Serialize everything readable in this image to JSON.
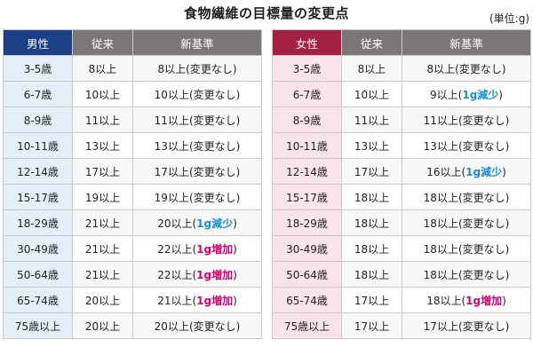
{
  "title": "食物繊維の目標量の変更点",
  "unit": "(単位:g)",
  "colors": {
    "male_header": "#1c3f86",
    "female_header": "#a52143",
    "decrease_tag": "#1a8fd0",
    "increase_tag": "#d6006f"
  },
  "male": {
    "headers": [
      "男性",
      "従来",
      "新基準"
    ],
    "rows": [
      {
        "age": "3-5歳",
        "old": "8以上",
        "new_pre": "8以上(",
        "new_tag": "",
        "new_tag_type": "",
        "new_note": "変更なし",
        "new_post": ")"
      },
      {
        "age": "6-7歳",
        "old": "10以上",
        "new_pre": "10以上(",
        "new_tag": "",
        "new_tag_type": "",
        "new_note": "変更なし",
        "new_post": ")"
      },
      {
        "age": "8-9歳",
        "old": "11以上",
        "new_pre": "11以上(",
        "new_tag": "",
        "new_tag_type": "",
        "new_note": "変更なし",
        "new_post": ")"
      },
      {
        "age": "10-11歳",
        "old": "13以上",
        "new_pre": "13以上(",
        "new_tag": "",
        "new_tag_type": "",
        "new_note": "変更なし",
        "new_post": ")"
      },
      {
        "age": "12-14歳",
        "old": "17以上",
        "new_pre": "17以上(",
        "new_tag": "",
        "new_tag_type": "",
        "new_note": "変更なし",
        "new_post": ")"
      },
      {
        "age": "15-17歳",
        "old": "19以上",
        "new_pre": "19以上(",
        "new_tag": "",
        "new_tag_type": "",
        "new_note": "変更なし",
        "new_post": ")"
      },
      {
        "age": "18-29歳",
        "old": "21以上",
        "new_pre": "20以上(",
        "new_tag": "1g減少",
        "new_tag_type": "dec",
        "new_note": "",
        "new_post": ")"
      },
      {
        "age": "30-49歳",
        "old": "21以上",
        "new_pre": "22以上(",
        "new_tag": "1g増加",
        "new_tag_type": "inc",
        "new_note": "",
        "new_post": ")"
      },
      {
        "age": "50-64歳",
        "old": "21以上",
        "new_pre": "22以上(",
        "new_tag": "1g増加",
        "new_tag_type": "inc",
        "new_note": "",
        "new_post": ")"
      },
      {
        "age": "65-74歳",
        "old": "20以上",
        "new_pre": "21以上(",
        "new_tag": "1g増加",
        "new_tag_type": "inc",
        "new_note": "",
        "new_post": ")"
      },
      {
        "age": "75歳以上",
        "old": "20以上",
        "new_pre": "20以上(",
        "new_tag": "",
        "new_tag_type": "",
        "new_note": "変更なし",
        "new_post": ")"
      }
    ]
  },
  "female": {
    "headers": [
      "女性",
      "従来",
      "新基準"
    ],
    "rows": [
      {
        "age": "3-5歳",
        "old": "8以上",
        "new_pre": "8以上(",
        "new_tag": "",
        "new_tag_type": "",
        "new_note": "変更なし",
        "new_post": ")"
      },
      {
        "age": "6-7歳",
        "old": "10以上",
        "new_pre": "9以上(",
        "new_tag": "1g減少",
        "new_tag_type": "dec",
        "new_note": "",
        "new_post": ")"
      },
      {
        "age": "8-9歳",
        "old": "11以上",
        "new_pre": "11以上(",
        "new_tag": "",
        "new_tag_type": "",
        "new_note": "変更なし",
        "new_post": ")"
      },
      {
        "age": "10-11歳",
        "old": "13以上",
        "new_pre": "13以上(",
        "new_tag": "",
        "new_tag_type": "",
        "new_note": "変更なし",
        "new_post": ")"
      },
      {
        "age": "12-14歳",
        "old": "17以上",
        "new_pre": "16以上(",
        "new_tag": "1g減少",
        "new_tag_type": "dec",
        "new_note": "",
        "new_post": ")"
      },
      {
        "age": "15-17歳",
        "old": "18以上",
        "new_pre": "18以上(",
        "new_tag": "",
        "new_tag_type": "",
        "new_note": "変更なし",
        "new_post": ")"
      },
      {
        "age": "18-29歳",
        "old": "18以上",
        "new_pre": "18以上(",
        "new_tag": "",
        "new_tag_type": "",
        "new_note": "変更なし",
        "new_post": ")"
      },
      {
        "age": "30-49歳",
        "old": "18以上",
        "new_pre": "18以上(",
        "new_tag": "",
        "new_tag_type": "",
        "new_note": "変更なし",
        "new_post": ")"
      },
      {
        "age": "50-64歳",
        "old": "18以上",
        "new_pre": "18以上(",
        "new_tag": "",
        "new_tag_type": "",
        "new_note": "変更なし",
        "new_post": ")"
      },
      {
        "age": "65-74歳",
        "old": "17以上",
        "new_pre": "18以上(",
        "new_tag": "1g増加",
        "new_tag_type": "inc",
        "new_note": "",
        "new_post": ")"
      },
      {
        "age": "75歳以上",
        "old": "17以上",
        "new_pre": "17以上(",
        "new_tag": "",
        "new_tag_type": "",
        "new_note": "変更なし",
        "new_post": ")"
      }
    ]
  }
}
